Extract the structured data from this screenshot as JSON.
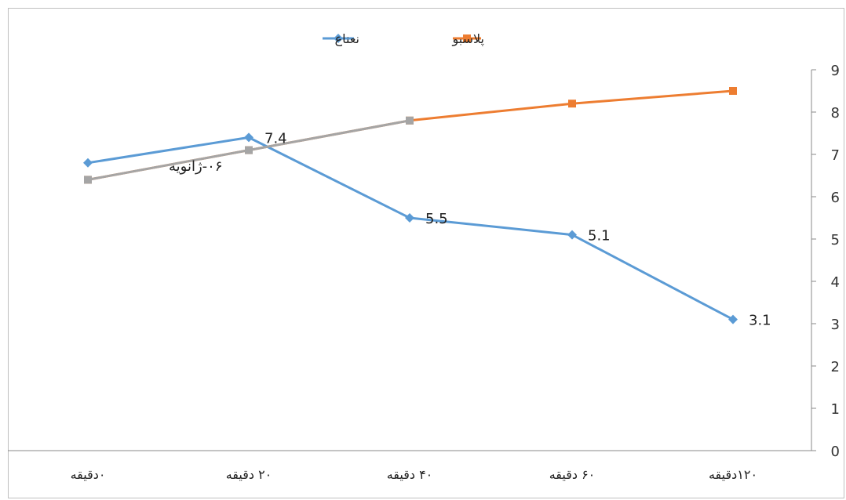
{
  "chart_data": {
    "type": "line",
    "categories": [
      "۰دقیقه",
      "۲۰ دقیقه",
      "۴۰ دقیقه",
      "۶۰ دقیقه",
      "۱۲۰دقیقه"
    ],
    "ylim": [
      0,
      9
    ],
    "yticks": [
      0,
      1,
      2,
      3,
      4,
      5,
      6,
      7,
      8,
      9
    ],
    "y_axis_side": "right",
    "grid": false,
    "legend_position": "top",
    "series": [
      {
        "name": "نعناع",
        "color": "#5b9bd5",
        "marker": "diamond",
        "values": [
          6.8,
          7.4,
          5.5,
          5.1,
          3.1
        ],
        "labels": [
          "",
          "7.4",
          "5.5",
          "5.1",
          "3.1"
        ]
      },
      {
        "name": "پلاسبو",
        "color": "#ed7d31",
        "marker": "square",
        "values": [
          6.4,
          7.1,
          7.8,
          8.2,
          8.5
        ],
        "labels": [
          "",
          "",
          "",
          "",
          ""
        ]
      }
    ],
    "overlay": {
      "color": "#a5a5a5",
      "marker": "square",
      "values": [
        6.4,
        7.1,
        7.8
      ]
    },
    "annotation": "۰۶-ژانویه"
  }
}
